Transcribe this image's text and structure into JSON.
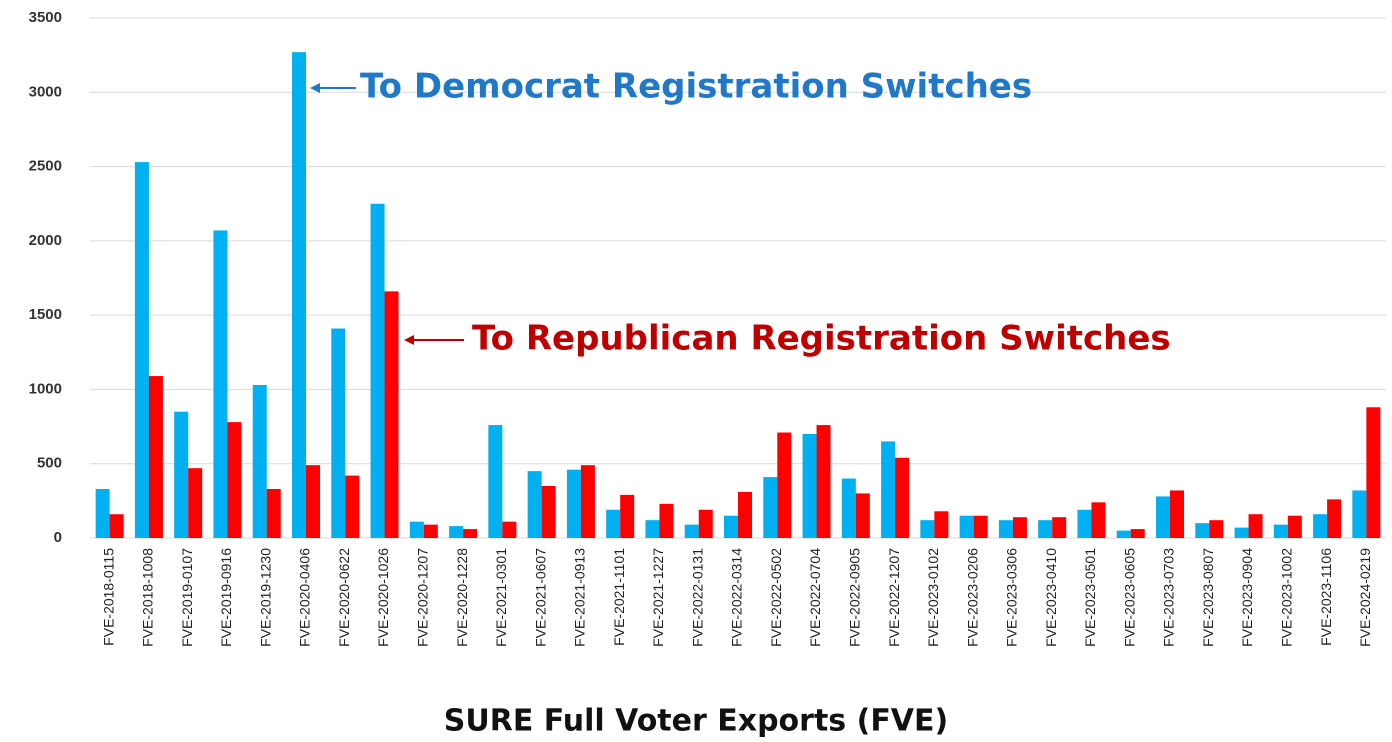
{
  "chart_data": {
    "type": "bar",
    "x_label": "SURE Full Voter Exports (FVE)",
    "categories": [
      "FVE-2018-0115",
      "FVE-2018-1008",
      "FVE-2019-0107",
      "FVE-2019-0916",
      "FVE-2019-1230",
      "FVE-2020-0406",
      "FVE-2020-0622",
      "FVE-2020-1026",
      "FVE-2020-1207",
      "FVE-2020-1228",
      "FVE-2021-0301",
      "FVE-2021-0607",
      "FVE-2021-0913",
      "FVE-2021-1101",
      "FVE-2021-1227",
      "FVE-2022-0131",
      "FVE-2022-0314",
      "FVE-2022-0502",
      "FVE-2022-0704",
      "FVE-2022-0905",
      "FVE-2022-1207",
      "FVE-2023-0102",
      "FVE-2023-0206",
      "FVE-2023-0306",
      "FVE-2023-0410",
      "FVE-2023-0501",
      "FVE-2023-0605",
      "FVE-2023-0703",
      "FVE-2023-0807",
      "FVE-2023-0904",
      "FVE-2023-1002",
      "FVE-2023-1106",
      "FVE-2024-0219"
    ],
    "series": [
      {
        "color": "#00b0f0",
        "values": [
          330,
          2530,
          850,
          2070,
          1030,
          3270,
          1410,
          2250,
          110,
          80,
          760,
          450,
          460,
          190,
          120,
          90,
          150,
          410,
          700,
          400,
          650,
          120,
          150,
          120,
          120,
          190,
          50,
          280,
          100,
          70,
          90,
          160,
          320
        ]
      },
      {
        "color": "#ff0000",
        "values": [
          160,
          1090,
          470,
          780,
          330,
          490,
          420,
          1660,
          90,
          60,
          110,
          350,
          490,
          290,
          230,
          190,
          310,
          710,
          760,
          300,
          540,
          180,
          150,
          140,
          140,
          240,
          60,
          320,
          120,
          160,
          150,
          260,
          880
        ]
      }
    ],
    "annotations": [
      {
        "text": "To Democrat Registration Switches",
        "color": "#1f78c8"
      },
      {
        "text": "To Republican Registration Switches",
        "color": "#c00000"
      }
    ],
    "ylim": [
      0,
      3500
    ],
    "yticks": [
      0,
      500,
      1000,
      1500,
      2000,
      2500,
      3000,
      3500
    ],
    "grid": true
  }
}
